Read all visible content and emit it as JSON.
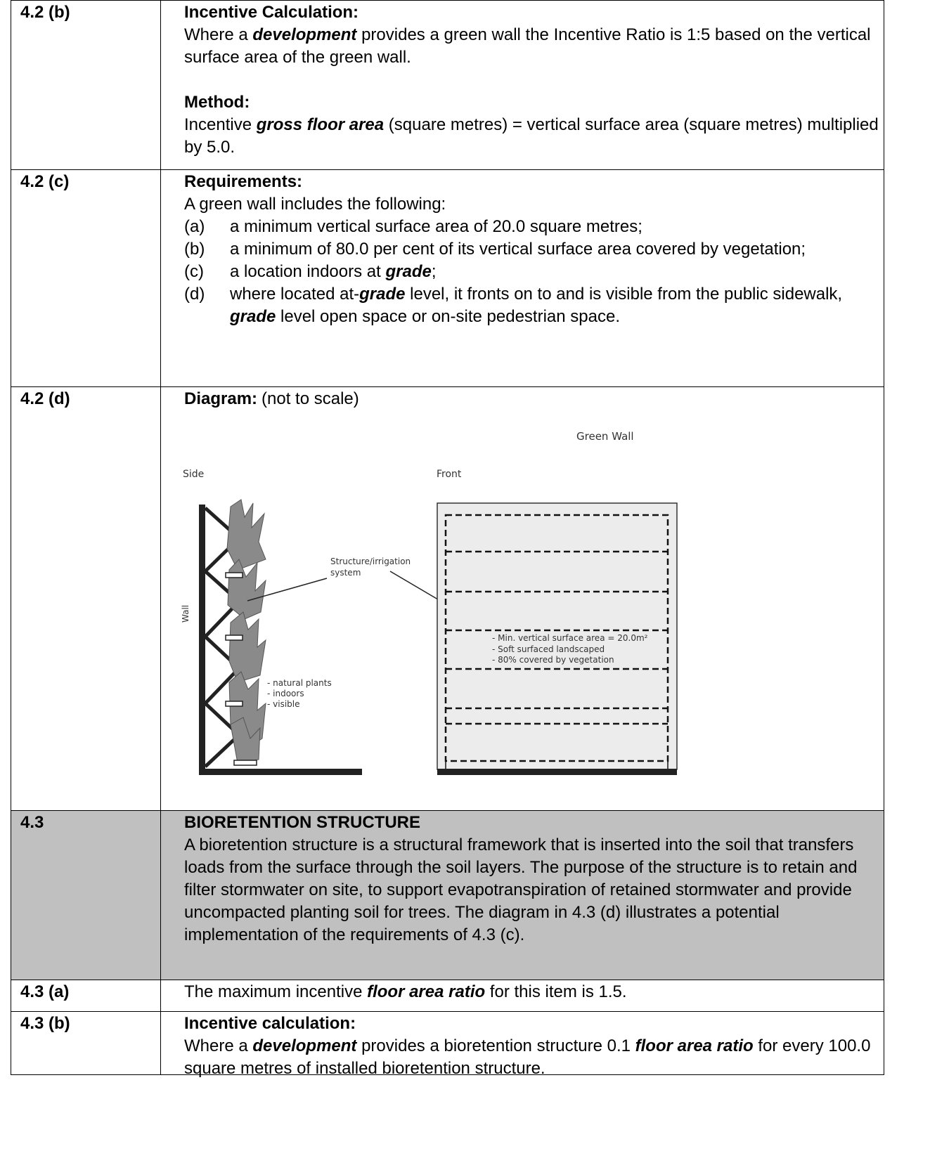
{
  "rows": [
    {
      "id": "4.2 (b)",
      "sections": [
        {
          "heading": "Incentive Calculation:",
          "runs": [
            "Where a ",
            "development",
            " provides a green wall the Incentive Ratio is 1:5 based on the vertical surface area of the green wall."
          ]
        },
        {
          "heading": "Method:",
          "runs": [
            "Incentive ",
            "gross floor area",
            " (square metres) = vertical surface area (square metres) multiplied by 5.0."
          ]
        }
      ]
    },
    {
      "id": "4.2 (c)",
      "sections": [
        {
          "heading": "Requirements:",
          "intro": "A green wall includes the following:",
          "items": [
            {
              "label": "(a)",
              "runs": [
                "a minimum vertical surface area of 20.0 square metres;"
              ]
            },
            {
              "label": "(b)",
              "runs": [
                "a minimum of 80.0 per cent of its vertical surface area covered by vegetation;"
              ]
            },
            {
              "label": "(c)",
              "runs": [
                "a location indoors at ",
                "grade",
                ";"
              ]
            },
            {
              "label": "(d)",
              "runs": [
                "where located at-",
                "grade",
                " level, it fronts on to and is visible from the public sidewalk, ",
                "grade",
                " level open space or on-site pedestrian space."
              ]
            }
          ]
        }
      ]
    },
    {
      "id": "4.2 (d)",
      "sections": [
        {
          "heading": "Diagram:",
          "note": "(not to scale)"
        }
      ],
      "diagram": {
        "title": "Green Wall",
        "side": "Side",
        "front": "Front",
        "wall": "Wall",
        "structure": [
          "Structure/irrigation",
          "system"
        ],
        "plant_notes": [
          "- natural plants",
          "- indoors",
          "- visible"
        ],
        "front_notes": [
          "- Min. vertical surface area  = 20.0m²",
          "- Soft surfaced landscaped",
          "- 80% covered by vegetation"
        ]
      }
    },
    {
      "id": "4.3",
      "shaded": true,
      "sections": [
        {
          "heading": "BIORETENTION STRUCTURE",
          "runs": [
            "A bioretention structure is a structural framework that is inserted into the soil that transfers loads from the surface through the soil layers. The purpose of the structure is to retain and filter stormwater on site, to support evapotranspiration of retained stormwater and provide uncompacted planting soil for trees. The diagram in 4.3 (d) illustrates a potential implementation of the requirements of 4.3 (c)."
          ]
        }
      ]
    },
    {
      "id": "4.3 (a)",
      "sections": [
        {
          "runs": [
            "The maximum incentive ",
            "floor area ratio",
            " for this item is 1.5."
          ]
        }
      ]
    },
    {
      "id": "4.3 (b)",
      "sections": [
        {
          "heading": "Incentive calculation:",
          "runs": [
            "Where a ",
            "development",
            " provides a bioretention structure 0.1 ",
            "floor area ratio",
            " for every 100.0 square metres of installed bioretention structure."
          ]
        }
      ]
    }
  ]
}
